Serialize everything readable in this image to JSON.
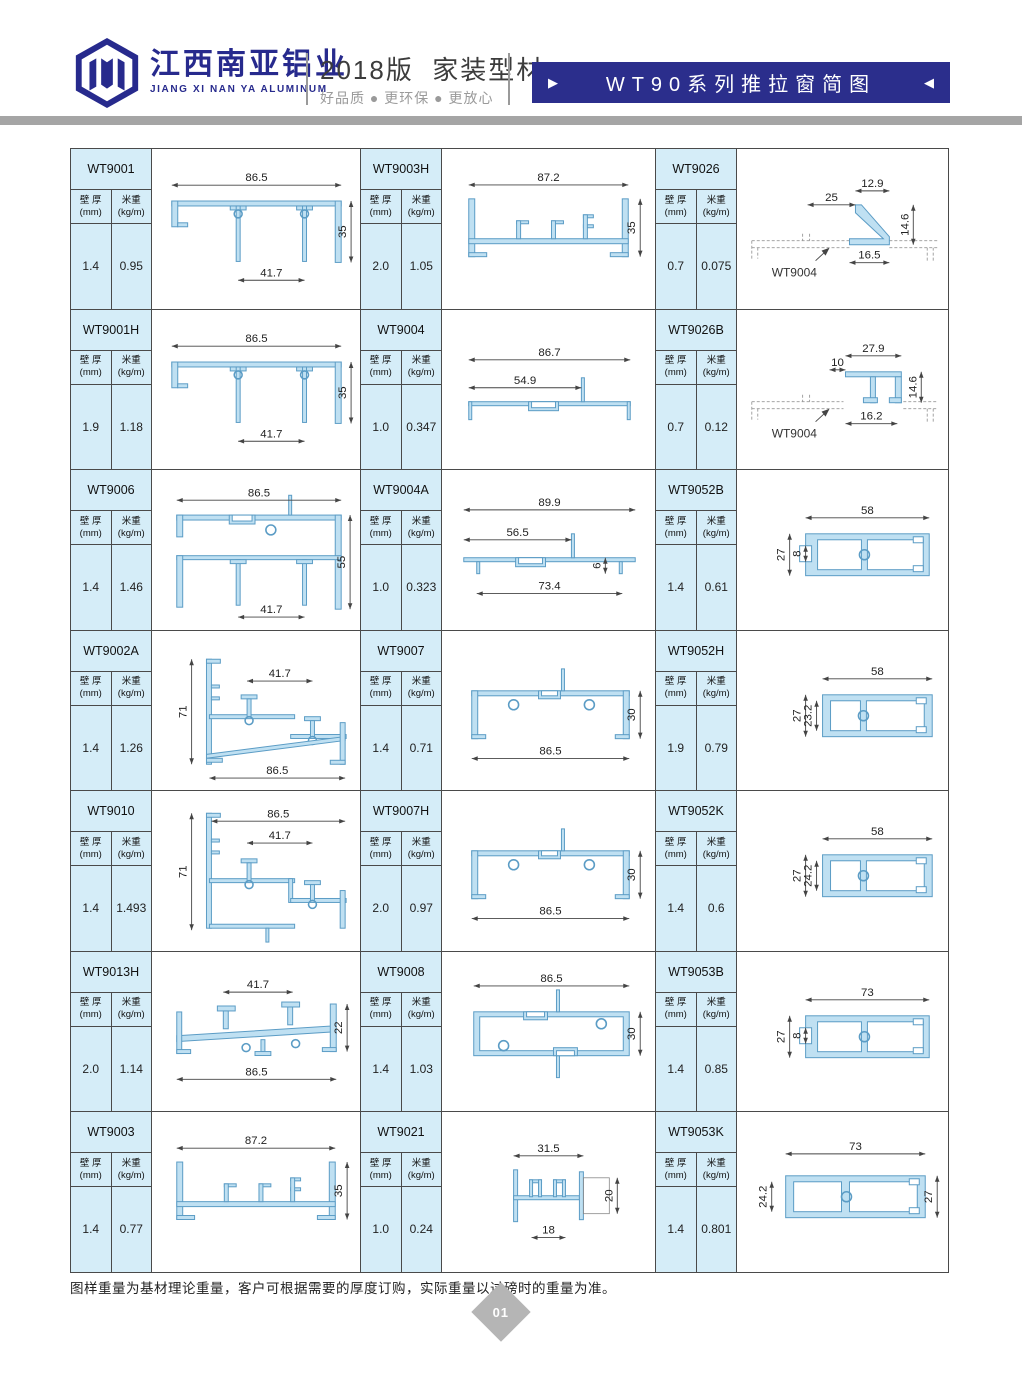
{
  "header": {
    "company_name_cn": "江西南亚铝业",
    "company_name_en": "JIANG XI NAN YA ALUMINUM",
    "edition_title": "2018版  家装型材",
    "tagline": "好品质 ● 更环保 ● 更放心",
    "banner_title": "WT90系列推拉窗简图",
    "banner_arrow_right": "▶",
    "banner_arrow_left": "◀"
  },
  "colors": {
    "brand_navy": "#272a8d",
    "banner_bg": "#2b2e8c",
    "panel_blue": "#d5edf8",
    "profile_fill": "#bfe0f2",
    "profile_stroke": "#5b9cc5",
    "divider_gray": "#a5a5a5",
    "grid_line": "#4a4a4a"
  },
  "table": {
    "col_headers": {
      "wall_label": "壁 厚",
      "wall_unit": "(mm)",
      "weight_label": "米重",
      "weight_unit": "(kg/m)"
    },
    "cells": [
      {
        "model": "WT9001",
        "wall_thickness_mm": "1.4",
        "weight_kg_per_m": "0.95",
        "shape": "frame2leg",
        "dims": [
          "86.5",
          "41.7",
          "35"
        ]
      },
      {
        "model": "WT9003H",
        "wall_thickness_mm": "2.0",
        "weight_kg_per_m": "1.05",
        "shape": "channel_feet",
        "dims": [
          "87.2",
          "35"
        ]
      },
      {
        "model": "WT9026",
        "wall_thickness_mm": "0.7",
        "weight_kg_per_m": "0.075",
        "shape": "clip26",
        "dims": [
          "12.9",
          "25",
          "14.6",
          "16.5"
        ],
        "annotation": "WT9004"
      },
      {
        "model": "WT9001H",
        "wall_thickness_mm": "1.9",
        "weight_kg_per_m": "1.18",
        "shape": "frame2leg",
        "dims": [
          "86.5",
          "41.7",
          "35"
        ]
      },
      {
        "model": "WT9004",
        "wall_thickness_mm": "1.0",
        "weight_kg_per_m": "0.347",
        "shape": "flatbar",
        "dims": [
          "86.7",
          "54.9"
        ]
      },
      {
        "model": "WT9026B",
        "wall_thickness_mm": "0.7",
        "weight_kg_per_m": "0.12",
        "shape": "clip26B",
        "dims": [
          "27.9",
          "10",
          "14.6",
          "16.2"
        ],
        "annotation": "WT9004"
      },
      {
        "model": "WT9006",
        "wall_thickness_mm": "1.4",
        "weight_kg_per_m": "1.46",
        "shape": "bigframe",
        "dims": [
          "86.5",
          "41.7",
          "55"
        ]
      },
      {
        "model": "WT9004A",
        "wall_thickness_mm": "1.0",
        "weight_kg_per_m": "0.323",
        "shape": "flatbar2",
        "dims": [
          "89.9",
          "56.5",
          "6",
          "73.4"
        ]
      },
      {
        "model": "WT9052B",
        "wall_thickness_mm": "1.4",
        "weight_kg_per_m": "0.61",
        "shape": "tube8",
        "dims": [
          "58",
          "27",
          "8"
        ]
      },
      {
        "model": "WT9002A",
        "wall_thickness_mm": "1.4",
        "weight_kg_per_m": "1.26",
        "shape": "sill",
        "dims": [
          "41.7",
          "71",
          "86.5"
        ]
      },
      {
        "model": "WT9007",
        "wall_thickness_mm": "1.4",
        "weight_kg_per_m": "0.71",
        "shape": "channel30",
        "dims": [
          "86.5",
          "30"
        ]
      },
      {
        "model": "WT9052H",
        "wall_thickness_mm": "1.9",
        "weight_kg_per_m": "0.79",
        "shape": "tube23",
        "dims": [
          "58",
          "27",
          "23.2"
        ]
      },
      {
        "model": "WT9010",
        "wall_thickness_mm": "1.4",
        "weight_kg_per_m": "1.493",
        "shape": "sill2",
        "dims": [
          "86.5",
          "41.7",
          "71"
        ]
      },
      {
        "model": "WT9007H",
        "wall_thickness_mm": "2.0",
        "weight_kg_per_m": "0.97",
        "shape": "channel30",
        "dims": [
          "86.5",
          "30"
        ]
      },
      {
        "model": "WT9052K",
        "wall_thickness_mm": "1.4",
        "weight_kg_per_m": "0.6",
        "shape": "tube23",
        "dims": [
          "58",
          "27",
          "24.2"
        ]
      },
      {
        "model": "WT9013H",
        "wall_thickness_mm": "2.0",
        "weight_kg_per_m": "1.14",
        "shape": "rail22",
        "dims": [
          "41.7",
          "86.5",
          "22"
        ]
      },
      {
        "model": "WT9008",
        "wall_thickness_mm": "1.4",
        "weight_kg_per_m": "1.03",
        "shape": "tube_topdim",
        "dims": [
          "86.5",
          "30"
        ]
      },
      {
        "model": "WT9053B",
        "wall_thickness_mm": "1.4",
        "weight_kg_per_m": "0.85",
        "shape": "tube8",
        "dims": [
          "73",
          "27",
          "8"
        ]
      },
      {
        "model": "WT9003",
        "wall_thickness_mm": "1.4",
        "weight_kg_per_m": "0.77",
        "shape": "channel_feet",
        "dims": [
          "87.2",
          "35"
        ]
      },
      {
        "model": "WT9021",
        "wall_thickness_mm": "1.0",
        "weight_kg_per_m": "0.24",
        "shape": "tee",
        "dims": [
          "31.5",
          "20",
          "18"
        ]
      },
      {
        "model": "WT9053K",
        "wall_thickness_mm": "1.4",
        "weight_kg_per_m": "0.801",
        "shape": "tube53k",
        "dims": [
          "73",
          "24.2",
          "27"
        ]
      }
    ]
  },
  "footer": {
    "note": "图样重量为基材理论重量，客户可根据需要的厚度订购，实际重量以过磅时的重量为准。",
    "page_number": "01"
  }
}
